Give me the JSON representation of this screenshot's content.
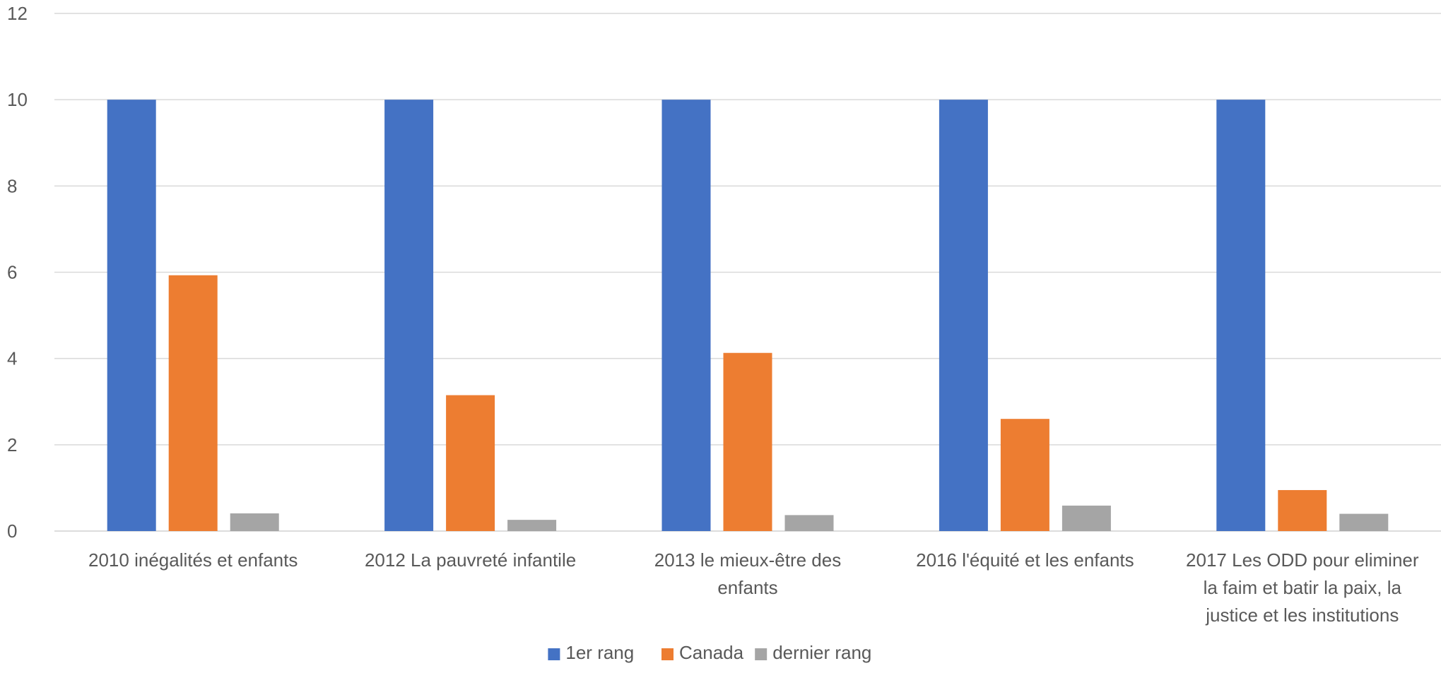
{
  "chart_data": {
    "type": "bar",
    "title": "",
    "xlabel": "",
    "ylabel": "",
    "ylim": [
      0,
      12
    ],
    "yticks": [
      0,
      2,
      4,
      6,
      8,
      10,
      12
    ],
    "grid": true,
    "legend_position": "bottom",
    "categories": [
      [
        "2010 inégalités et enfants"
      ],
      [
        "2012 La pauvreté infantile"
      ],
      [
        "2013 le mieux-être des",
        "enfants"
      ],
      [
        "2016 l'équité et les enfants"
      ],
      [
        "2017 Les ODD pour eliminer",
        "la faim et batir la paix, la",
        "justice et les institutions"
      ]
    ],
    "series": [
      {
        "name": "1er rang",
        "color": "#4472c4",
        "values": [
          10,
          10,
          10,
          10,
          10
        ]
      },
      {
        "name": "Canada",
        "color": "#ed7d31",
        "values": [
          5.93,
          3.15,
          4.13,
          2.6,
          0.95
        ]
      },
      {
        "name": "dernier rang",
        "color": "#a5a5a5",
        "values": [
          0.41,
          0.26,
          0.37,
          0.59,
          0.4
        ]
      }
    ]
  }
}
